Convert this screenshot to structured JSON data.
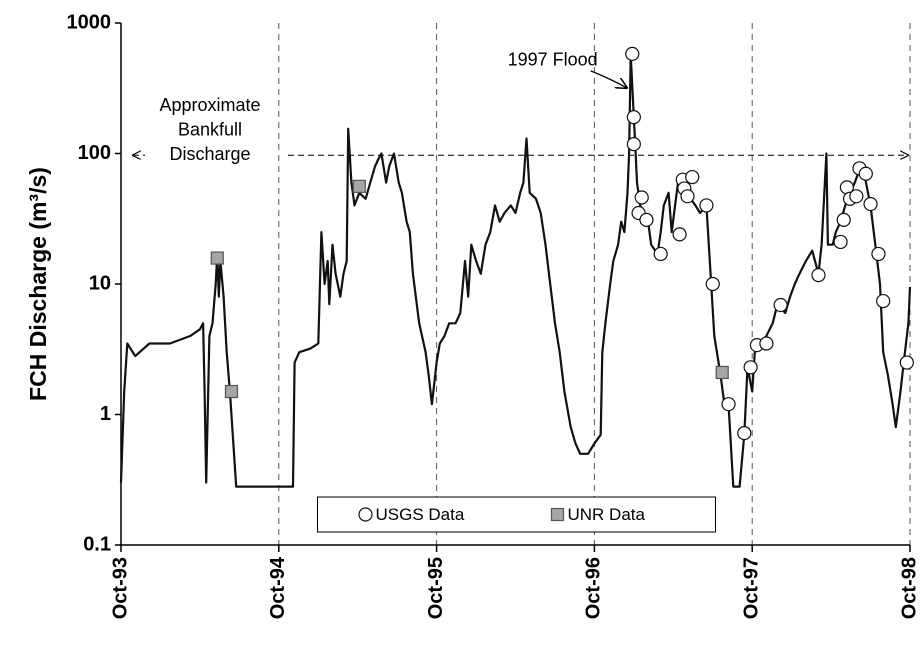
{
  "chart_data": {
    "type": "line",
    "y_label": "FCH Discharge (m³/s)",
    "log_y": true,
    "xgrid": true,
    "legend": "lower center",
    "xlim": [
      1993.75,
      1998.75
    ],
    "xticks": [
      {
        "value": 1993.75,
        "label": "Oct-93"
      },
      {
        "value": 1994.75,
        "label": "Oct-94"
      },
      {
        "value": 1995.75,
        "label": "Oct-95"
      },
      {
        "value": 1996.75,
        "label": "Oct-96"
      },
      {
        "value": 1997.75,
        "label": "Oct-97"
      },
      {
        "value": 1998.75,
        "label": "Oct-98"
      }
    ],
    "ylim": [
      0.1,
      1000
    ],
    "yticks": [
      0.1,
      1,
      10,
      100,
      1000
    ],
    "discharge": {
      "color": "#111111",
      "x": [
        1993.75,
        1993.77,
        1993.79,
        1993.84,
        1993.93,
        1994.06,
        1994.19,
        1994.25,
        1994.27,
        1994.28,
        1994.29,
        1994.31,
        1994.33,
        1994.35,
        1994.36,
        1994.37,
        1994.38,
        1994.4,
        1994.42,
        1994.44,
        1994.48,
        1994.84,
        1994.85,
        1994.88,
        1994.95,
        1995.0,
        1995.02,
        1995.04,
        1995.06,
        1995.07,
        1995.09,
        1995.11,
        1995.14,
        1995.16,
        1995.18,
        1995.19,
        1995.21,
        1995.23,
        1995.26,
        1995.3,
        1995.33,
        1995.36,
        1995.38,
        1995.4,
        1995.43,
        1995.45,
        1995.48,
        1995.51,
        1995.53,
        1995.56,
        1995.58,
        1995.6,
        1995.64,
        1995.68,
        1995.7,
        1995.72,
        1995.75,
        1995.77,
        1995.8,
        1995.83,
        1995.87,
        1995.9,
        1995.93,
        1995.95,
        1995.97,
        1996.0,
        1996.03,
        1996.06,
        1996.09,
        1996.12,
        1996.15,
        1996.18,
        1996.22,
        1996.25,
        1996.28,
        1996.3,
        1996.32,
        1996.34,
        1996.38,
        1996.41,
        1996.44,
        1996.47,
        1996.5,
        1996.53,
        1996.56,
        1996.6,
        1996.63,
        1996.66,
        1996.71,
        1996.75,
        1996.79,
        1996.8,
        1996.82,
        1996.85,
        1996.87,
        1996.9,
        1996.92,
        1996.94,
        1996.96,
        1996.97,
        1996.98,
        1997.0,
        1997.01,
        1997.02,
        1997.04,
        1997.06,
        1997.09,
        1997.11,
        1997.15,
        1997.17,
        1997.19,
        1997.22,
        1997.24,
        1997.28,
        1997.31,
        1997.33,
        1997.36,
        1997.39,
        1997.42,
        1997.46,
        1997.49,
        1997.51,
        1997.55,
        1997.57,
        1997.6,
        1997.63,
        1997.67,
        1997.7,
        1997.72,
        1997.75,
        1997.77,
        1997.8,
        1997.84,
        1997.88,
        1997.91,
        1997.96,
        1997.99,
        1998.02,
        1998.05,
        1998.09,
        1998.13,
        1998.17,
        1998.19,
        1998.22,
        1998.23,
        1998.26,
        1998.28,
        1998.31,
        1998.34,
        1998.37,
        1998.4,
        1998.43,
        1998.46,
        1998.5,
        1998.53,
        1998.56,
        1998.58,
        1998.61,
        1998.64,
        1998.66,
        1998.69,
        1998.71,
        1998.74,
        1998.75
      ],
      "values": [
        0.3,
        1.5,
        3.5,
        2.8,
        3.5,
        3.5,
        4,
        4.5,
        5,
        1.5,
        0.3,
        4,
        5,
        10,
        17,
        8,
        15,
        8,
        3,
        1.5,
        0.28,
        0.28,
        2.5,
        3,
        3.2,
        3.5,
        25,
        10,
        15,
        7,
        20,
        12,
        8,
        12,
        15,
        155,
        60,
        40,
        50,
        45,
        60,
        80,
        90,
        100,
        60,
        80,
        100,
        60,
        50,
        30,
        25,
        12,
        5,
        3,
        2,
        1.2,
        2.5,
        3.5,
        4,
        5,
        5,
        6,
        15,
        8,
        20,
        15,
        12,
        20,
        25,
        40,
        30,
        35,
        40,
        35,
        50,
        60,
        130,
        50,
        45,
        35,
        20,
        10,
        5,
        3,
        1.5,
        0.8,
        0.6,
        0.5,
        0.5,
        0.6,
        0.7,
        3,
        5,
        10,
        15,
        20,
        30,
        25,
        50,
        100,
        570,
        185,
        110,
        60,
        40,
        35,
        30,
        20,
        17,
        25,
        40,
        50,
        25,
        60,
        50,
        65,
        45,
        40,
        35,
        40,
        10,
        4,
        2,
        1.3,
        1.2,
        0.28,
        0.28,
        0.7,
        2.3,
        1.5,
        3.5,
        3.5,
        4,
        5,
        7,
        6,
        8,
        10,
        12,
        15,
        18,
        12,
        20,
        100,
        20,
        20,
        25,
        30,
        40,
        50,
        60,
        75,
        70,
        40,
        20,
        10,
        3,
        2,
        1.2,
        0.8,
        1.5,
        2.5,
        5,
        9.5
      ]
    },
    "series": [
      {
        "name": "USGS Data",
        "marker": "circle",
        "color": "#ffffff",
        "edge": "#111111",
        "x": [
          1996.99,
          1997.0,
          1997.0,
          1997.03,
          1997.05,
          1997.08,
          1997.17,
          1997.29,
          1997.31,
          1997.32,
          1997.34,
          1997.37,
          1997.46,
          1997.5,
          1997.6,
          1997.7,
          1997.74,
          1997.78,
          1997.84,
          1997.93,
          1998.17,
          1998.31,
          1998.33,
          1998.35,
          1998.37,
          1998.41,
          1998.43,
          1998.47,
          1998.5,
          1998.55,
          1998.58,
          1998.73
        ],
        "values": [
          580,
          190,
          118,
          35,
          46,
          31,
          17,
          24,
          63,
          54,
          47,
          66,
          40,
          10,
          1.2,
          0.72,
          2.3,
          3.4,
          3.5,
          6.9,
          11.7,
          21,
          31,
          55,
          45,
          47,
          77,
          70,
          41,
          17,
          7.4,
          2.5
        ]
      },
      {
        "name": "UNR Data",
        "marker": "square",
        "color": "#a6a6a6",
        "edge": "#555555",
        "x": [
          1994.36,
          1994.45,
          1995.26,
          1997.56
        ],
        "values": [
          15.8,
          1.5,
          56,
          2.1
        ]
      }
    ],
    "reference_line": {
      "value": 97,
      "label": [
        "Approximate",
        "Bankfull",
        "Discharge"
      ]
    },
    "annotation": "1997 Flood"
  }
}
